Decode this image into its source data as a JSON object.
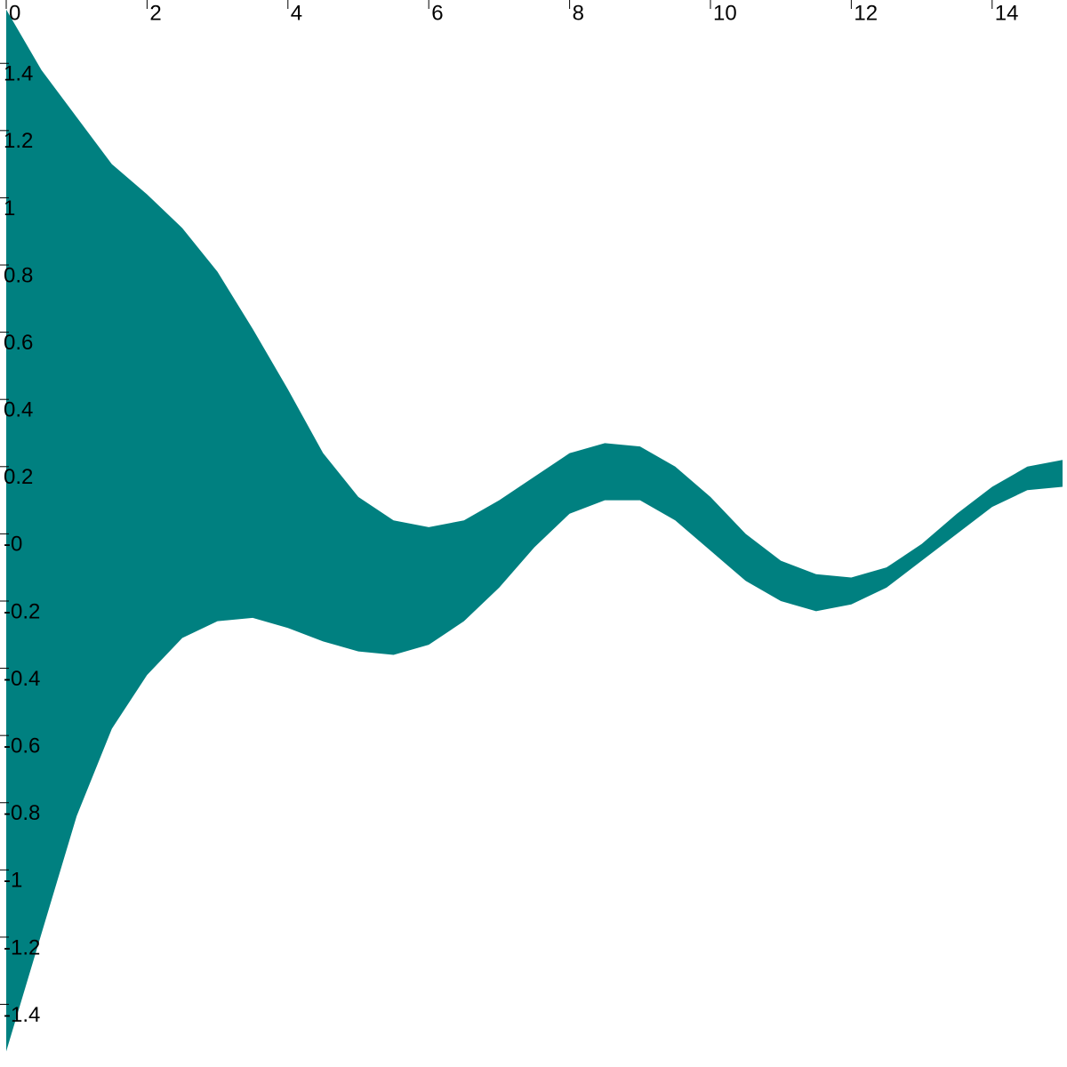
{
  "chart_data": {
    "type": "band",
    "color": "#008080",
    "x": [
      0,
      0.5,
      1,
      1.5,
      2,
      2.5,
      3,
      3.5,
      4,
      4.5,
      5,
      5.5,
      6,
      6.5,
      7,
      7.5,
      8,
      8.5,
      9,
      9.5,
      10,
      10.5,
      11,
      11.5,
      12,
      12.5,
      13,
      13.5,
      14,
      14.5,
      15
    ],
    "upper": [
      1.56,
      1.38,
      1.24,
      1.1,
      1.01,
      0.91,
      0.78,
      0.61,
      0.43,
      0.24,
      0.11,
      0.04,
      0.02,
      0.04,
      0.1,
      0.17,
      0.24,
      0.27,
      0.26,
      0.2,
      0.11,
      0.0,
      -0.08,
      -0.12,
      -0.13,
      -0.1,
      -0.03,
      0.06,
      0.14,
      0.2,
      0.22
    ],
    "lower": [
      -1.54,
      -1.19,
      -0.84,
      -0.58,
      -0.42,
      -0.31,
      -0.26,
      -0.25,
      -0.28,
      -0.32,
      -0.35,
      -0.36,
      -0.33,
      -0.26,
      -0.16,
      -0.04,
      0.06,
      0.1,
      0.1,
      0.04,
      -0.05,
      -0.14,
      -0.2,
      -0.23,
      -0.21,
      -0.16,
      -0.08,
      0.0,
      0.08,
      0.13,
      0.14
    ],
    "xlim": [
      0,
      15
    ],
    "xticks": [
      0,
      2,
      4,
      6,
      8,
      10,
      12,
      14
    ],
    "ylim": [
      -1.56,
      1.57
    ],
    "yticks": [
      1.4,
      1.2,
      1,
      0.8,
      0.6,
      0.4,
      0.2,
      {
        "value": 0,
        "label": "-0"
      },
      -0.2,
      -0.4,
      -0.6,
      -0.8,
      -1,
      -1.2,
      -1.4
    ]
  }
}
